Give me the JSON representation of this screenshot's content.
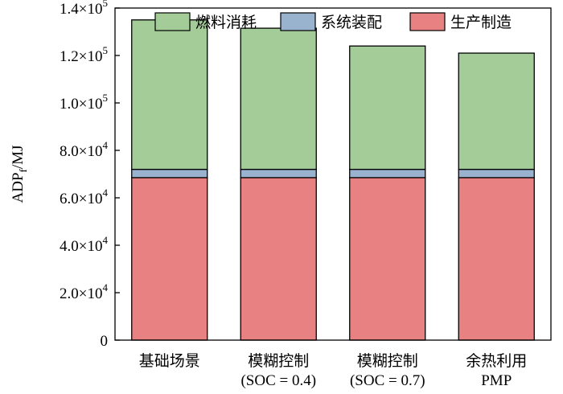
{
  "chart_data": {
    "type": "bar",
    "stacked": true,
    "categories": [
      {
        "line1": "基础场景",
        "line2": ""
      },
      {
        "line1": "模糊控制",
        "line2": "(SOC = 0.4)"
      },
      {
        "line1": "模糊控制",
        "line2": "(SOC = 0.7)"
      },
      {
        "line1": "余热利用",
        "line2": "PMP"
      }
    ],
    "series": [
      {
        "name": "生产制造",
        "color": "#e88282",
        "values": [
          68500,
          68500,
          68500,
          68500
        ]
      },
      {
        "name": "系统装配",
        "color": "#99b3cf",
        "values": [
          3500,
          3500,
          3500,
          3500
        ]
      },
      {
        "name": "燃料消耗",
        "color": "#a3cc99",
        "values": [
          63000,
          59500,
          52000,
          49000
        ]
      }
    ],
    "legend_order": [
      2,
      1,
      0
    ],
    "legend_position": "top",
    "ylabel": {
      "main": "ADP",
      "sub": "f",
      "suffix": "/MJ"
    },
    "ylim": [
      0,
      140000
    ],
    "yticks": [
      {
        "value": 0,
        "mant": "0",
        "exp": ""
      },
      {
        "value": 20000,
        "mant": "2.0×10",
        "exp": "4"
      },
      {
        "value": 40000,
        "mant": "4.0×10",
        "exp": "4"
      },
      {
        "value": 60000,
        "mant": "6.0×10",
        "exp": "4"
      },
      {
        "value": 80000,
        "mant": "8.0×10",
        "exp": "4"
      },
      {
        "value": 100000,
        "mant": "1.0×10",
        "exp": "5"
      },
      {
        "value": 120000,
        "mant": "1.2×10",
        "exp": "5"
      },
      {
        "value": 140000,
        "mant": "1.4×10",
        "exp": "5"
      }
    ],
    "grid": false
  }
}
